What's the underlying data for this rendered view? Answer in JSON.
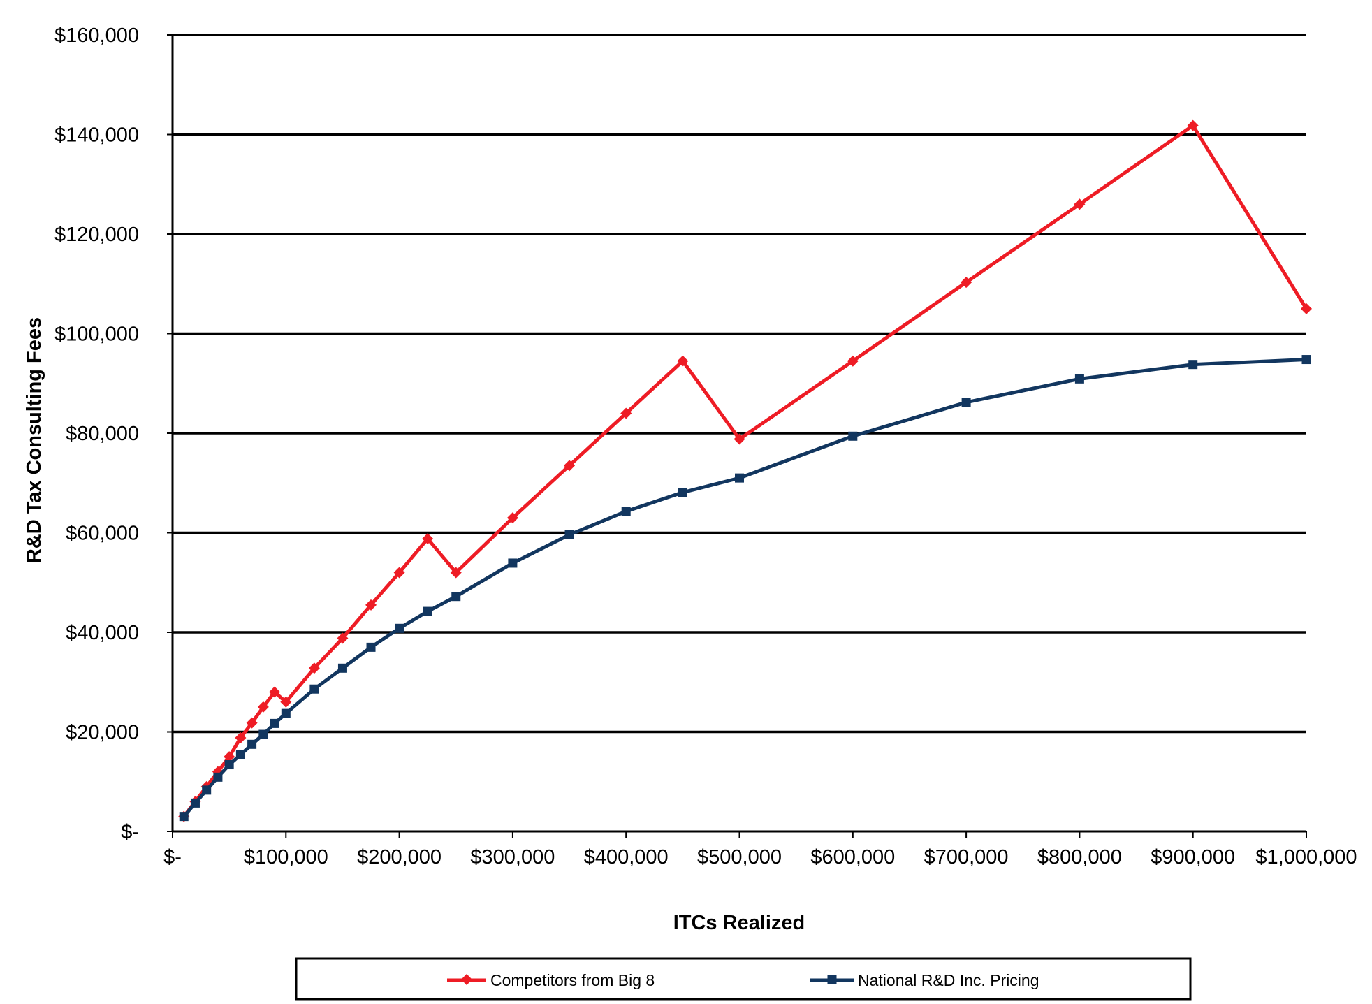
{
  "chart_data": {
    "type": "line",
    "title": "",
    "xlabel": "ITCs Realized",
    "ylabel": "R&D Tax Consulting Fees",
    "xlim": [
      0,
      1000000
    ],
    "ylim": [
      0,
      160000
    ],
    "grid": true,
    "legend_position": "bottom",
    "x_tick_values": [
      0,
      100000,
      200000,
      300000,
      400000,
      500000,
      600000,
      700000,
      800000,
      900000,
      1000000
    ],
    "x_tick_labels": [
      "$-",
      "$100,000",
      "$200,000",
      "$300,000",
      "$400,000",
      "$500,000",
      "$600,000",
      "$700,000",
      "$800,000",
      "$900,000",
      "$1,000,000"
    ],
    "y_tick_values": [
      0,
      20000,
      40000,
      60000,
      80000,
      100000,
      120000,
      140000,
      160000
    ],
    "y_tick_labels": [
      "$-",
      "$20,000",
      "$40,000",
      "$60,000",
      "$80,000",
      "$100,000",
      "$120,000",
      "$140,000",
      "$160,000"
    ],
    "series": [
      {
        "name": "Competitors from Big 8",
        "color": "#ee1c25",
        "marker": "diamond",
        "x": [
          10000,
          20000,
          30000,
          40000,
          50000,
          60000,
          70000,
          80000,
          90000,
          100000,
          125000,
          150000,
          175000,
          200000,
          225000,
          250000,
          300000,
          350000,
          400000,
          450000,
          500000,
          600000,
          700000,
          800000,
          900000,
          1000000
        ],
        "y": [
          3000,
          6000,
          9000,
          12000,
          15000,
          18800,
          21800,
          25000,
          28000,
          26000,
          32800,
          38800,
          45500,
          52000,
          58800,
          52000,
          63000,
          73500,
          84000,
          94500,
          78800,
          94500,
          110300,
          126000,
          141800,
          105000
        ]
      },
      {
        "name": "National R&D Inc. Pricing",
        "color": "#12365f",
        "marker": "square",
        "x": [
          10000,
          20000,
          30000,
          40000,
          50000,
          60000,
          70000,
          80000,
          90000,
          100000,
          125000,
          150000,
          175000,
          200000,
          225000,
          250000,
          300000,
          350000,
          400000,
          450000,
          500000,
          600000,
          700000,
          800000,
          900000,
          1000000
        ],
        "y": [
          3000,
          5700,
          8300,
          10900,
          13400,
          15400,
          17500,
          19500,
          21700,
          23700,
          28600,
          32800,
          37000,
          40800,
          44200,
          47200,
          53900,
          59600,
          64300,
          68100,
          71000,
          79400,
          86200,
          90900,
          93800,
          94800
        ]
      }
    ]
  }
}
